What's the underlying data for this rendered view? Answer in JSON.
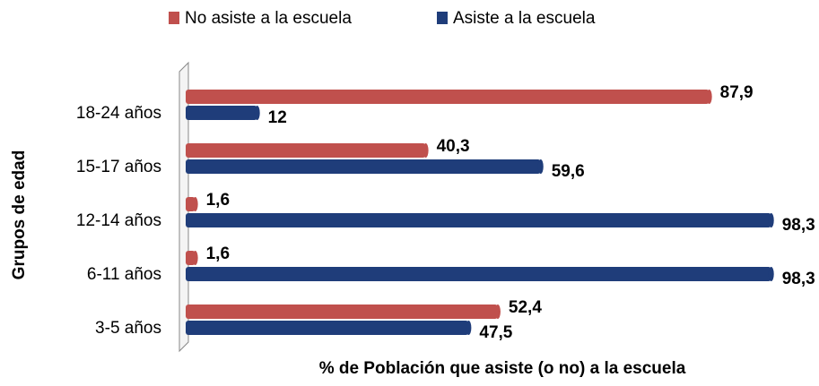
{
  "chart_data": {
    "type": "bar",
    "orientation": "horizontal",
    "x_label": "% de Población que asiste (o no) a la escuela",
    "y_label": "Grupos de edad",
    "categories": [
      "18-24 años",
      "15-17 años",
      "12-14 años",
      "6-11 años",
      "3-5 años"
    ],
    "series": [
      {
        "name": "No asiste a la escuela",
        "color": "#c0504d",
        "values": [
          87.9,
          40.3,
          1.6,
          1.6,
          52.4
        ],
        "value_labels": [
          "87,9",
          "40,3",
          "1,6",
          "1,6",
          "52,4"
        ]
      },
      {
        "name": "Asiste a la escuela",
        "color": "#1f3d7a",
        "values": [
          12,
          59.6,
          98.3,
          98.3,
          47.5
        ],
        "value_labels": [
          "12",
          "59,6",
          "98,3",
          "98,3",
          "47,5"
        ]
      }
    ],
    "legend": "top"
  }
}
